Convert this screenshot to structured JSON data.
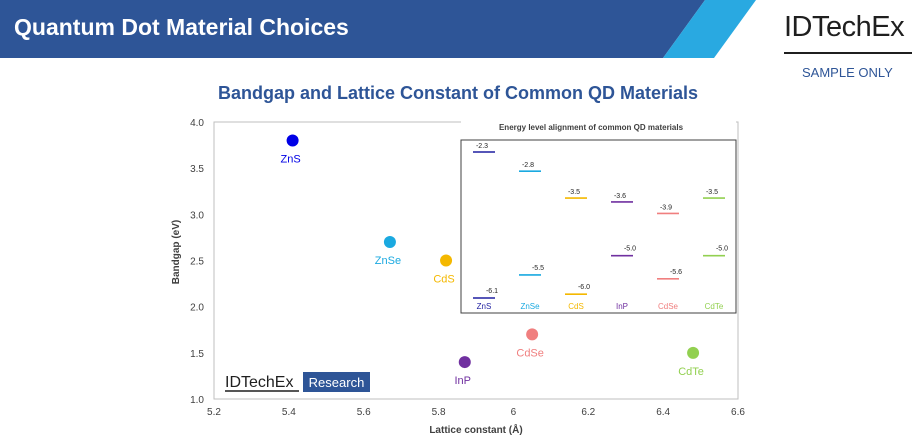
{
  "header": {
    "title": "Quantum Dot Material Choices",
    "bar_color": "#2e5597",
    "accent_color": "#29a9e1"
  },
  "brand": {
    "logo_text": "IDTechEx",
    "note": "SAMPLE ONLY"
  },
  "watermark": {
    "brand": "IDTechEx",
    "tag": "Research"
  },
  "chart_data": [
    {
      "type": "scatter",
      "title": "Bandgap and Lattice Constant of Common QD Materials",
      "xlabel": "Lattice constant (Å)",
      "ylabel": "Bandgap (eV)",
      "xlim": [
        5.2,
        6.6
      ],
      "ylim": [
        1.0,
        4.0
      ],
      "x_ticks": [
        "5.2",
        "5.4",
        "5.6",
        "5.8",
        "6",
        "6.2",
        "6.4",
        "6.6"
      ],
      "y_ticks": [
        "1.0",
        "1.5",
        "2.0",
        "2.5",
        "3.0",
        "3.5",
        "4.0"
      ],
      "grid": false,
      "points": [
        {
          "label": "ZnS",
          "x": 5.41,
          "y": 3.8,
          "color": "#0000e6"
        },
        {
          "label": "ZnSe",
          "x": 5.67,
          "y": 2.7,
          "color": "#1aa9e0"
        },
        {
          "label": "CdS",
          "x": 5.82,
          "y": 2.5,
          "color": "#f4b800"
        },
        {
          "label": "InP",
          "x": 5.87,
          "y": 1.4,
          "color": "#7030a0"
        },
        {
          "label": "CdSe",
          "x": 6.05,
          "y": 1.7,
          "color": "#f07f7f"
        },
        {
          "label": "CdTe",
          "x": 6.48,
          "y": 1.5,
          "color": "#92d050"
        }
      ]
    },
    {
      "type": "energy-level",
      "title": "Energy level alignment of common QD materials",
      "materials": [
        {
          "name": "ZnS",
          "cb": -2.3,
          "vb": -6.1,
          "cb_label": "-2.3",
          "vb_label": "-6.1",
          "color": "#1f1fa0"
        },
        {
          "name": "ZnSe",
          "cb": -2.8,
          "vb": -5.5,
          "cb_label": "-2.8",
          "vb_label": "-5.5",
          "color": "#1aa9e0"
        },
        {
          "name": "CdS",
          "cb": -3.5,
          "vb": -6.0,
          "cb_label": "-3.5",
          "vb_label": "-6.0",
          "color": "#f4b800"
        },
        {
          "name": "InP",
          "cb": -3.6,
          "vb": -5.0,
          "cb_label": "-3.6",
          "vb_label": "-5.0",
          "color": "#7030a0"
        },
        {
          "name": "CdSe",
          "cb": -3.9,
          "vb": -5.6,
          "cb_label": "-3.9",
          "vb_label": "-5.6",
          "color": "#f07f7f"
        },
        {
          "name": "CdTe",
          "cb": -3.5,
          "vb": -5.0,
          "cb_label": "-3.5",
          "vb_label": "-5.0",
          "color": "#92d050"
        }
      ]
    }
  ]
}
